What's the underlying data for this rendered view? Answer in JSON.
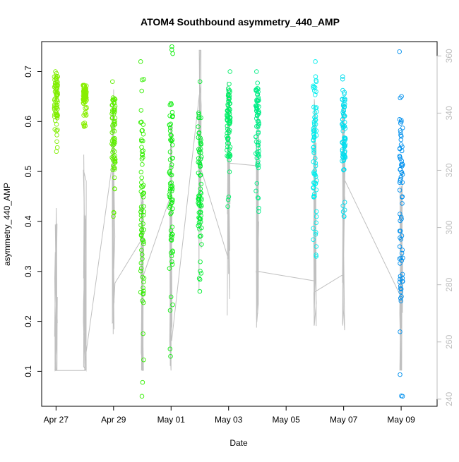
{
  "chart_data": {
    "type": "scatter",
    "title": "ATOM4 Southbound asymmetry_440_AMP",
    "xlabel": "Date",
    "ylabel": "asymmetry_440_AMP",
    "x_ticks": [
      "Apr 27",
      "Apr 29",
      "May 01",
      "May 03",
      "May 05",
      "May 07",
      "May 09"
    ],
    "y_ticks": [
      "0.1",
      "0.2",
      "0.3",
      "0.4",
      "0.5",
      "0.6",
      "0.7"
    ],
    "y2_ticks": [
      "240",
      "260",
      "280",
      "300",
      "320",
      "340",
      "360"
    ],
    "xlim": [
      "Apr 26 12:00",
      "May 10 06:00"
    ],
    "ylim": [
      0.03,
      0.76
    ],
    "y2lim": [
      237.5,
      365
    ],
    "grid": false,
    "colors": {
      "points_by_date": "gradient yellow-green (#88ee00) to blue (#0080ff)",
      "secondary_line": "#c0c0c0"
    },
    "clusters": [
      {
        "day": "Apr 27",
        "y_range": [
          0.54,
          0.7
        ],
        "color": "#80ee00"
      },
      {
        "day": "Apr 28",
        "y_range": [
          0.59,
          0.66
        ],
        "color": "#88ee00"
      },
      {
        "day": "Apr 29",
        "y_range": [
          0.41,
          0.68
        ],
        "color": "#5fee00"
      },
      {
        "day": "Apr 30",
        "y_range": [
          0.05,
          0.72
        ],
        "color": "#33ee00"
      },
      {
        "day": "May 01",
        "y_range": [
          0.13,
          0.75
        ],
        "color": "#10ee10"
      },
      {
        "day": "May 02",
        "y_range": [
          0.26,
          0.68
        ],
        "color": "#00ee30"
      },
      {
        "day": "May 03",
        "y_range": [
          0.43,
          0.7
        ],
        "color": "#00ee66"
      },
      {
        "day": "May 04",
        "y_range": [
          0.42,
          0.7
        ],
        "color": "#00ee88"
      },
      {
        "day": "May 06",
        "y_range": [
          0.33,
          0.72
        ],
        "color": "#00eeee"
      },
      {
        "day": "May 07",
        "y_range": [
          0.41,
          0.69
        ],
        "color": "#00ddee"
      },
      {
        "day": "May 09",
        "y_range": [
          0.05,
          0.74
        ],
        "color": "#0090ee"
      }
    ],
    "secondary_series_range": [
      250,
      362
    ]
  }
}
